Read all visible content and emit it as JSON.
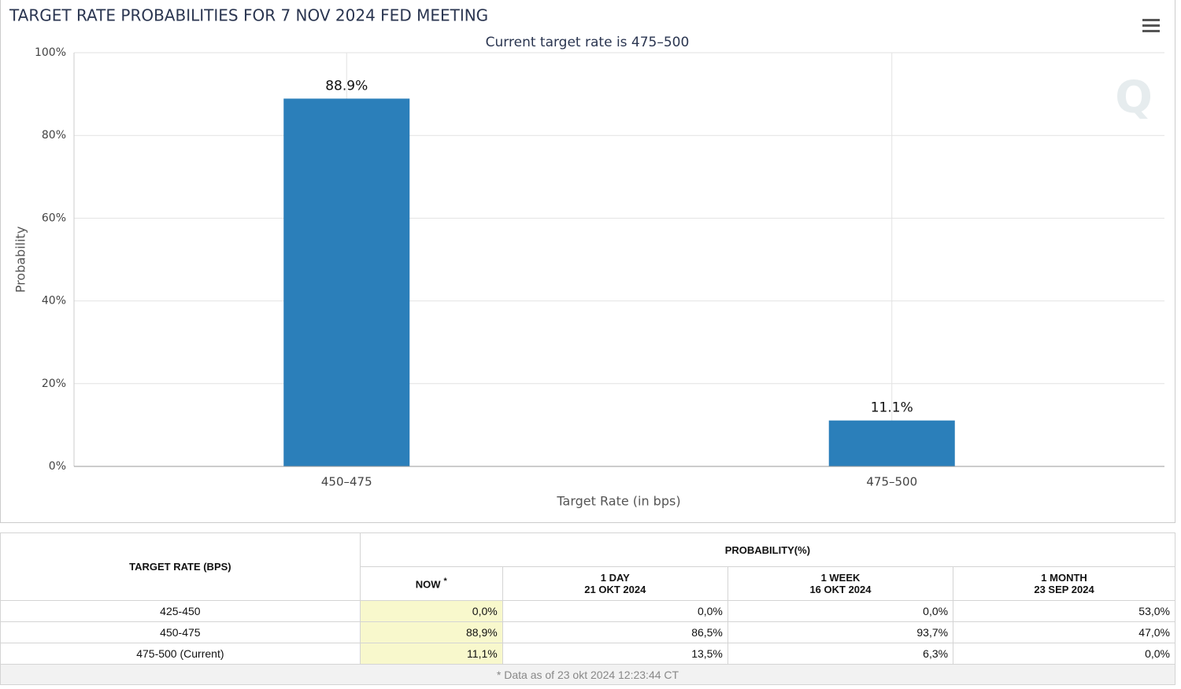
{
  "chart_data": {
    "type": "bar",
    "title": "TARGET RATE PROBABILITIES FOR 7 NOV 2024 FED MEETING",
    "subtitle": "Current target rate is 475–500",
    "x_label": "Target Rate (in bps)",
    "y_label": "Probability",
    "categories": [
      "450–475",
      "475–500"
    ],
    "values": [
      88.9,
      11.1
    ],
    "value_labels": [
      "88.9%",
      "11.1%"
    ],
    "color": "#2b7fba",
    "ylim": [
      0,
      100
    ],
    "yticks": [
      {
        "value": 0,
        "label": "0%"
      },
      {
        "value": 20,
        "label": "20%"
      },
      {
        "value": 40,
        "label": "40%"
      },
      {
        "value": 60,
        "label": "60%"
      },
      {
        "value": 80,
        "label": "80%"
      },
      {
        "value": 100,
        "label": "100%"
      }
    ],
    "grid": true
  },
  "table": {
    "rate_header": "TARGET RATE (BPS)",
    "probability_header": "PROBABILITY(%)",
    "columns": [
      {
        "name": "NOW",
        "note": "*"
      },
      {
        "name": "1 DAY",
        "date": "21 OKT 2024"
      },
      {
        "name": "1 WEEK",
        "date": "16 OKT 2024"
      },
      {
        "name": "1 MONTH",
        "date": "23 SEP 2024"
      }
    ],
    "rows": [
      {
        "rate": "425-450",
        "values": [
          "0,0%",
          "0,0%",
          "0,0%",
          "53,0%"
        ]
      },
      {
        "rate": "450-475",
        "values": [
          "88,9%",
          "86,5%",
          "93,7%",
          "47,0%"
        ]
      },
      {
        "rate": "475-500 (Current)",
        "values": [
          "11,1%",
          "13,5%",
          "6,3%",
          "0,0%"
        ]
      }
    ],
    "footnote": "* Data as of 23 okt 2024 12:23:44 CT"
  }
}
